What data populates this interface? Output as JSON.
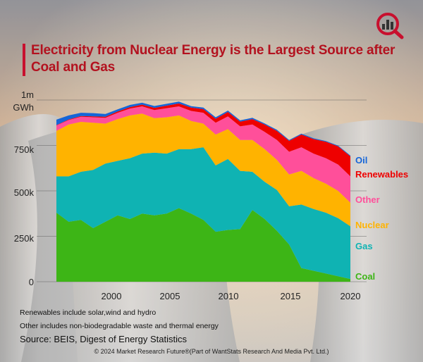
{
  "title": "Electricity from Nuclear Energy is the Largest Source after Coal and Gas",
  "y_tick_labels": [
    "0",
    "250k",
    "500k",
    "750k",
    "1m",
    "GWh"
  ],
  "x_tick_labels": [
    "2000",
    "2005",
    "2010",
    "2015",
    "2020"
  ],
  "notes": [
    "Renewables include solar,wind and hydro",
    "Other includes non-biodegradable waste and thermal energy"
  ],
  "source": "Source: BEIS, Digest of Energy Statistics",
  "copyright": "© 2024 Market Research Future®(Part of WantStats Research And Media Pvt. Ltd.)",
  "logo_icon": "bar-chart-magnifier-icon",
  "colors": {
    "title": "#b3121f",
    "coal": "#3db516",
    "gas": "#0fb3b3",
    "nuclear": "#ffb300",
    "other": "#ff4f9a",
    "renewables": "#ee0000",
    "oil": "#1565d8"
  },
  "chart_data": {
    "type": "area",
    "stacked": true,
    "title": "Electricity from Nuclear Energy is the Largest Source after Coal and Gas",
    "ylabel": "GWh",
    "ylim": [
      0,
      1000000
    ],
    "y_ticks": [
      0,
      250000,
      500000,
      750000,
      1000000
    ],
    "x_ticks": [
      2000,
      2005,
      2010,
      2015,
      2020
    ],
    "x": [
      1996,
      1997,
      1998,
      1999,
      2000,
      2001,
      2002,
      2003,
      2004,
      2005,
      2006,
      2007,
      2008,
      2009,
      2010,
      2011,
      2012,
      2013,
      2014,
      2015,
      2016,
      2017,
      2018,
      2019,
      2020
    ],
    "series": [
      {
        "name": "Coal",
        "color": "#3db516",
        "values": [
          380000,
          330000,
          340000,
          295000,
          330000,
          365000,
          345000,
          375000,
          365000,
          375000,
          405000,
          375000,
          340000,
          275000,
          285000,
          290000,
          395000,
          345000,
          280000,
          205000,
          75000,
          60000,
          45000,
          30000,
          15000
        ]
      },
      {
        "name": "Gas",
        "color": "#0fb3b3",
        "values": [
          200000,
          250000,
          265000,
          320000,
          320000,
          300000,
          335000,
          330000,
          345000,
          330000,
          325000,
          355000,
          400000,
          365000,
          390000,
          320000,
          210000,
          205000,
          225000,
          210000,
          350000,
          340000,
          335000,
          320000,
          290000
        ]
      },
      {
        "name": "Nuclear",
        "color": "#ffb300",
        "values": [
          250000,
          285000,
          275000,
          260000,
          220000,
          230000,
          235000,
          220000,
          190000,
          200000,
          185000,
          155000,
          130000,
          170000,
          165000,
          170000,
          175000,
          180000,
          165000,
          175000,
          185000,
          170000,
          160000,
          150000,
          130000
        ]
      },
      {
        "name": "Other",
        "color": "#ff4f9a",
        "values": [
          30000,
          25000,
          28000,
          30000,
          32000,
          35000,
          38000,
          40000,
          45000,
          50000,
          50000,
          55000,
          60000,
          65000,
          70000,
          75000,
          85000,
          95000,
          110000,
          125000,
          130000,
          135000,
          140000,
          145000,
          145000
        ]
      },
      {
        "name": "Renewables",
        "color": "#ee0000",
        "values": [
          2000,
          3000,
          4000,
          5000,
          6000,
          7000,
          8000,
          10000,
          12000,
          14000,
          16000,
          18000,
          20000,
          22000,
          24000,
          26000,
          30000,
          40000,
          50000,
          60000,
          70000,
          80000,
          90000,
          100000,
          110000
        ]
      },
      {
        "name": "Oil",
        "color": "#1565d8",
        "values": [
          30000,
          22000,
          18000,
          18000,
          15000,
          12000,
          12000,
          10000,
          10000,
          10000,
          10000,
          8000,
          8000,
          8000,
          8000,
          7000,
          7000,
          6000,
          6000,
          5000,
          5000,
          4000,
          4000,
          4000,
          4000
        ]
      }
    ]
  }
}
